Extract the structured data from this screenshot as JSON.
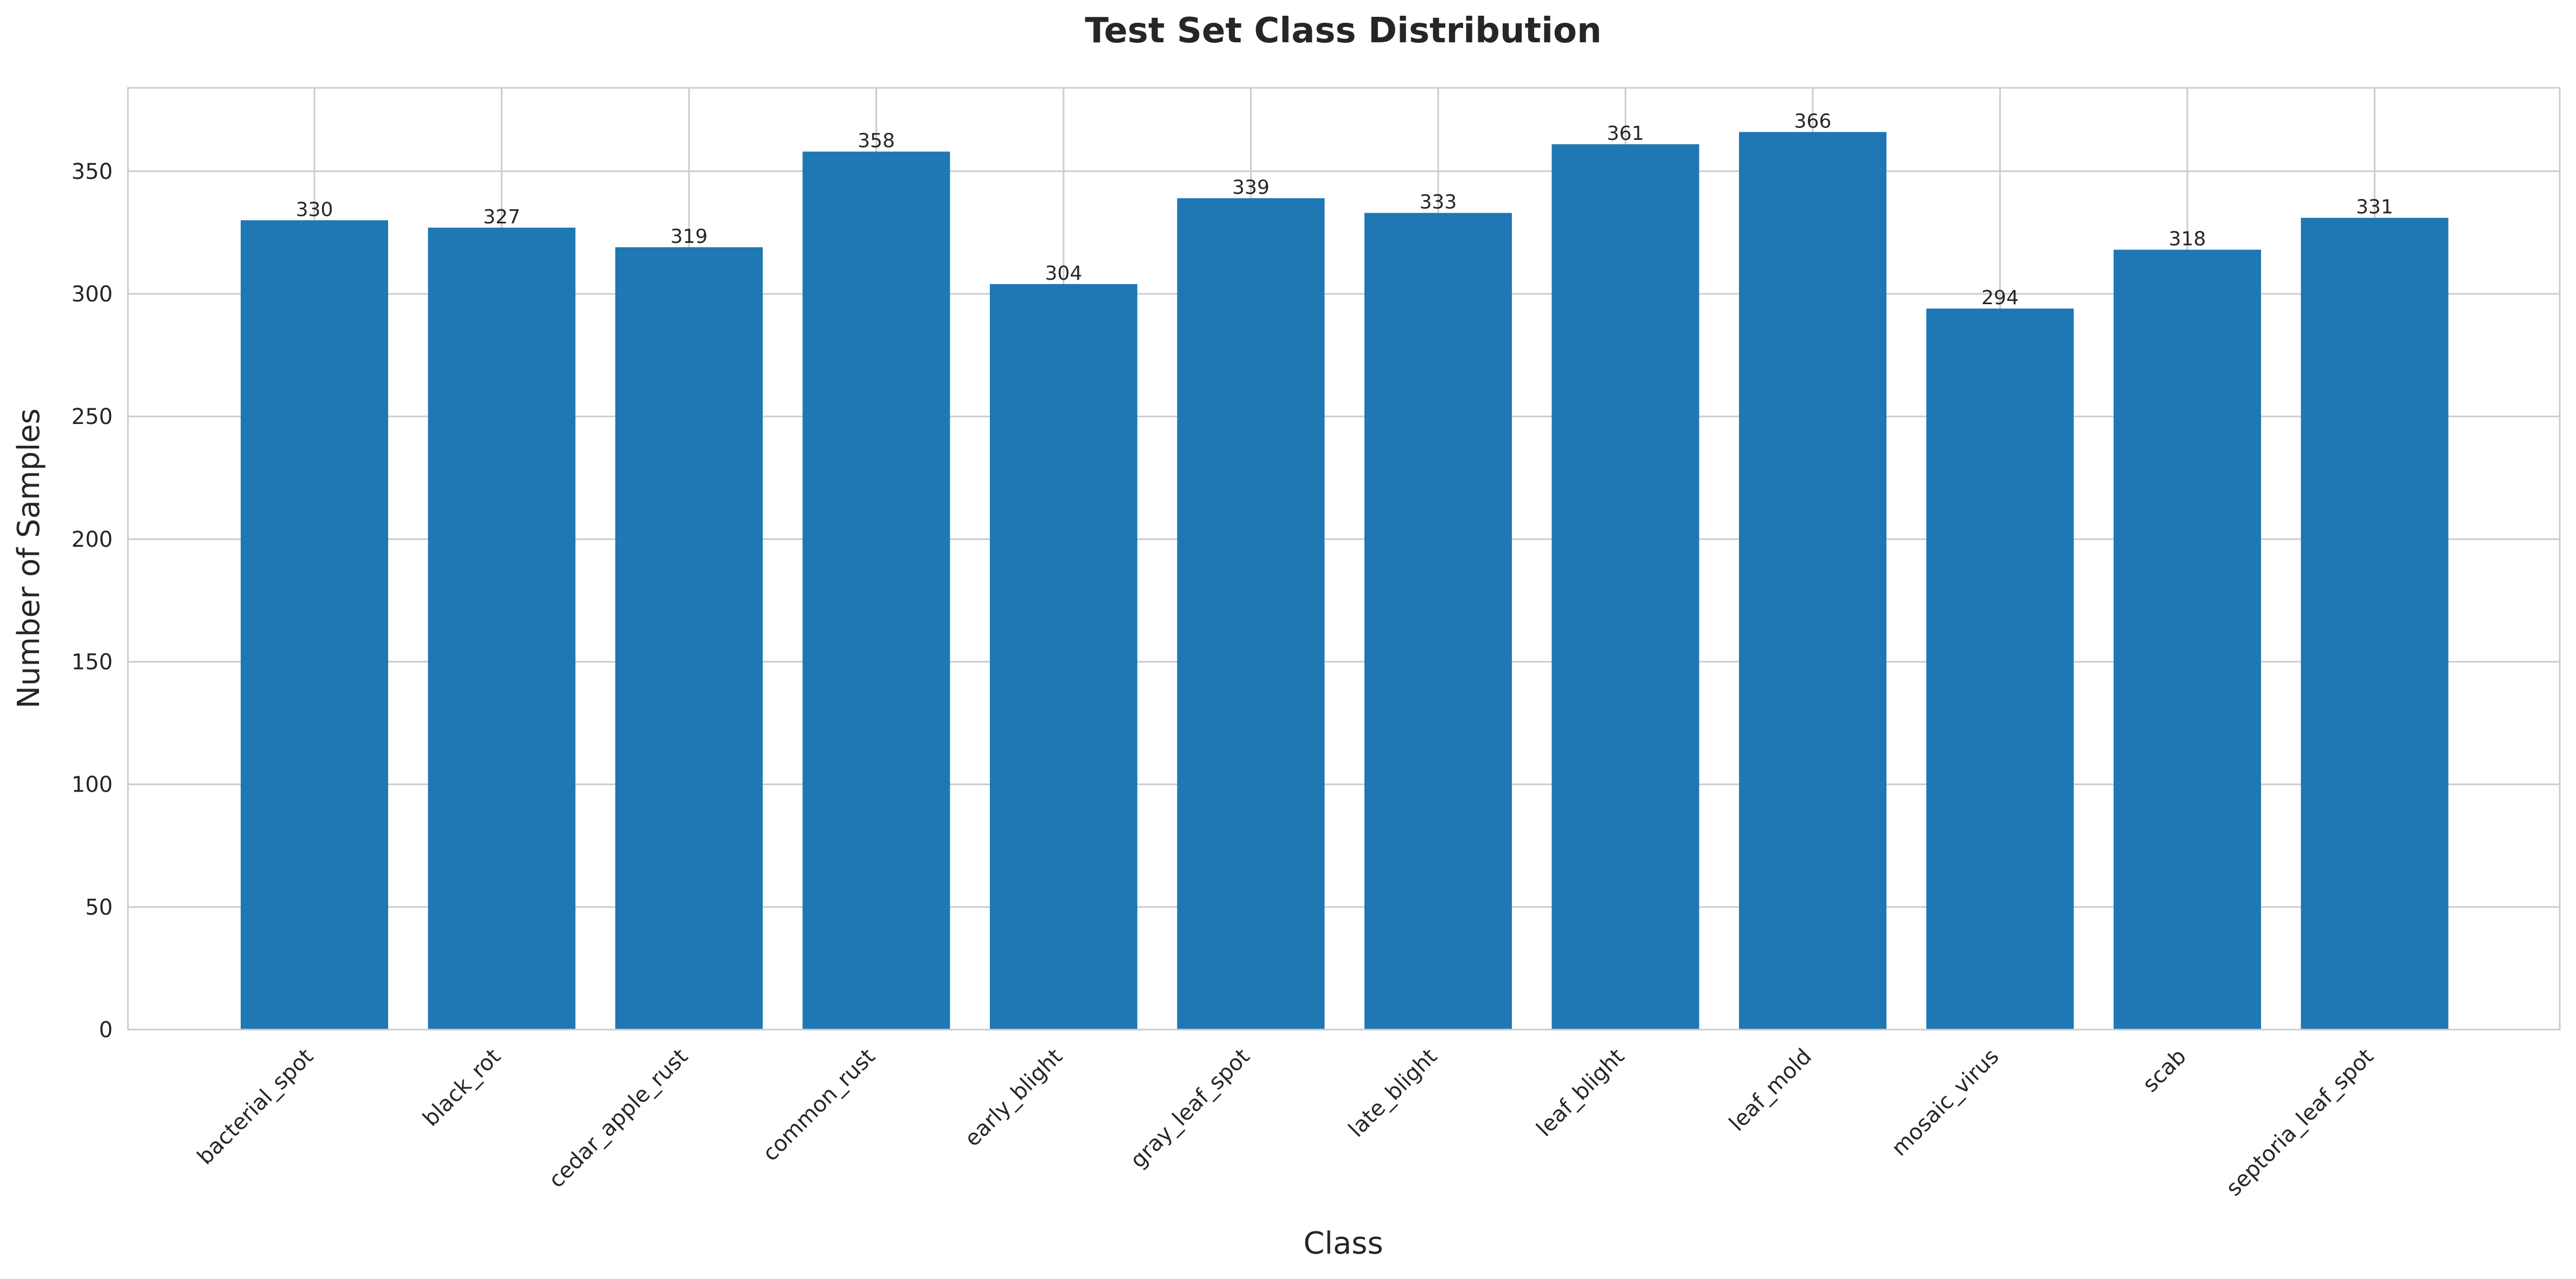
{
  "chart_data": {
    "type": "bar",
    "title": "Test Set Class Distribution",
    "xlabel": "Class",
    "ylabel": "Number of Samples",
    "categories": [
      "bacterial_spot",
      "black_rot",
      "cedar_apple_rust",
      "common_rust",
      "early_blight",
      "gray_leaf_spot",
      "late_blight",
      "leaf_blight",
      "leaf_mold",
      "mosaic_virus",
      "scab",
      "septoria_leaf_spot"
    ],
    "values": [
      330,
      327,
      319,
      358,
      304,
      339,
      333,
      361,
      366,
      294,
      318,
      331
    ],
    "value_labels": [
      "330",
      "327",
      "319",
      "358",
      "304",
      "339",
      "333",
      "361",
      "366",
      "294",
      "318",
      "331"
    ],
    "ylim": [
      0,
      384
    ],
    "yticks": [
      0,
      50,
      100,
      150,
      200,
      250,
      300,
      350
    ],
    "ytick_labels": [
      "0",
      "50",
      "100",
      "150",
      "200",
      "250",
      "300",
      "350"
    ],
    "grid": true,
    "bar_color": "#1f77b4",
    "x_tick_rotation_deg": 45
  }
}
